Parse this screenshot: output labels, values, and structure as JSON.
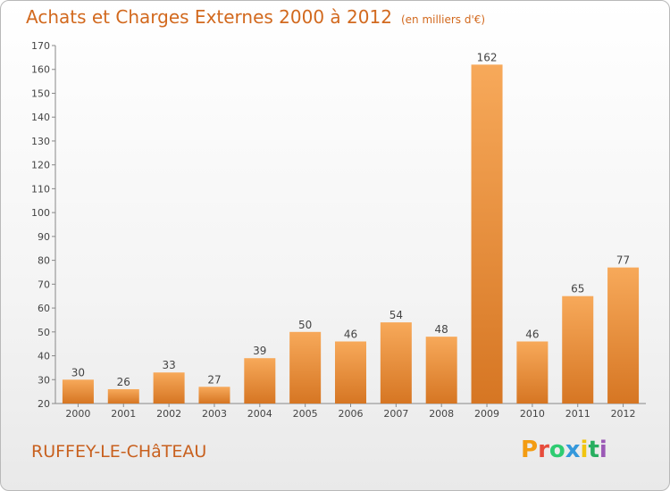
{
  "header": {
    "title": "Achats et Charges Externes 2000 à 2012",
    "subtitle": "(en milliers d'€)"
  },
  "footer": {
    "commune": "RUFFEY-LE-CHâTEAU",
    "brand": "Proxiti",
    "brand_colors": [
      "#f39c12",
      "#e74c3c",
      "#2ecc71",
      "#3498db",
      "#f1c40f",
      "#27ae60",
      "#9b59b6"
    ]
  },
  "colors": {
    "bar_light": "#f7a95a",
    "bar_dark": "#d67623",
    "text": "#444444",
    "title": "#d2691e"
  },
  "chart_data": {
    "type": "bar",
    "title": "Achats et Charges Externes 2000 à 2012",
    "subtitle": "(en milliers d'€)",
    "categories": [
      "2000",
      "2001",
      "2002",
      "2003",
      "2004",
      "2005",
      "2006",
      "2007",
      "2008",
      "2009",
      "2010",
      "2011",
      "2012"
    ],
    "values": [
      30,
      26,
      33,
      27,
      39,
      50,
      46,
      54,
      48,
      162,
      46,
      65,
      77
    ],
    "ylim": [
      20,
      170
    ],
    "yticks": [
      20,
      30,
      40,
      50,
      60,
      70,
      80,
      90,
      100,
      110,
      120,
      130,
      140,
      150,
      160,
      170
    ],
    "grid": false,
    "data_labels": true
  }
}
